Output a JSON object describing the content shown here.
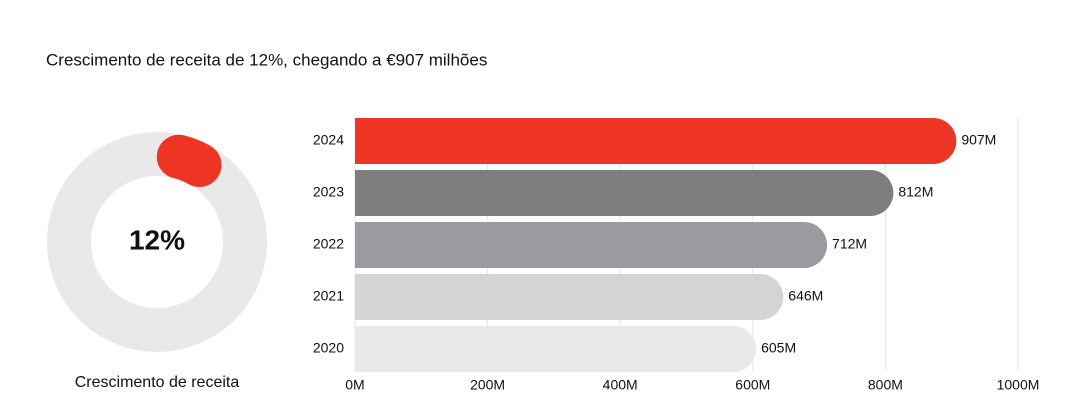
{
  "title": "Crescimento de receita de 12%, chegando a €907 milhões",
  "chart_data": [
    {
      "type": "donut",
      "value": 12,
      "value_label": "12%",
      "label": "Crescimento de receita",
      "color": "#ee3424",
      "track_color": "#e8e9e8",
      "max": 100
    },
    {
      "type": "bar",
      "orientation": "horizontal",
      "categories": [
        "2024",
        "2023",
        "2022",
        "2021",
        "2020"
      ],
      "values": [
        907,
        812,
        712,
        646,
        605
      ],
      "value_labels": [
        "907M",
        "812M",
        "712M",
        "646M",
        "605M"
      ],
      "colors": [
        "#ee3424",
        "#7d7e7d",
        "#9a9a9f",
        "#d4d4d4",
        "#e8e9e8"
      ],
      "xlim": [
        0,
        1000
      ],
      "xticks": [
        {
          "value": 0,
          "label": "0M"
        },
        {
          "value": 200,
          "label": "200M"
        },
        {
          "value": 400,
          "label": "400M"
        },
        {
          "value": 600,
          "label": "600M"
        },
        {
          "value": 800,
          "label": "800M"
        },
        {
          "value": 1000,
          "label": "1000M"
        }
      ],
      "grid": true
    }
  ]
}
